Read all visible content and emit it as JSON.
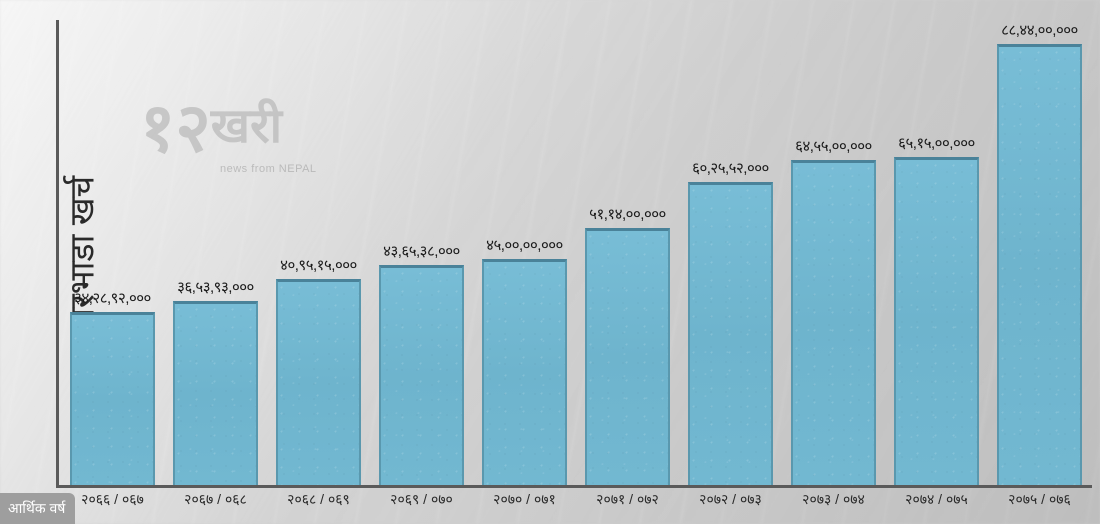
{
  "chart": {
    "type": "bar",
    "y_axis_label": "घरभाडा खर्च",
    "corner_badge": "आर्थिक वर्ष",
    "logo": {
      "num": "१२",
      "text": "खरी",
      "sub": "news from NEPAL"
    },
    "bar_color": "#72b8d1",
    "bar_border_color": "#4a8299",
    "axis_color": "#5a5a5a",
    "text_color": "#1a1a1a",
    "background_color": "#dcdcdc",
    "ylim_max": 884400000,
    "label_fontsize": 15,
    "axis_label_fontsize": 34,
    "bars": [
      {
        "category": "२०६६ / ०६७",
        "value_label": "३४,२८,९२,०००",
        "value": 342892000
      },
      {
        "category": "२०६७ / ०६८",
        "value_label": "३६,५३,९३,०००",
        "value": 365393000
      },
      {
        "category": "२०६८ / ०६९",
        "value_label": "४०,९५,१५,०००",
        "value": 409515000
      },
      {
        "category": "२०६९ / ०७०",
        "value_label": "४३,६५,३८,०००",
        "value": 436538000
      },
      {
        "category": "२०७० / ०७१",
        "value_label": "४५,००,००,०००",
        "value": 450000000
      },
      {
        "category": "२०७१ / ०७२",
        "value_label": "५१,१४,००,०००",
        "value": 511400000
      },
      {
        "category": "२०७२ / ०७३",
        "value_label": "६०,२५,५२,०००",
        "value": 602552000
      },
      {
        "category": "२०७३ / ०७४",
        "value_label": "६४,५५,००,०००",
        "value": 645500000
      },
      {
        "category": "२०७४ / ०७५",
        "value_label": "६५,१५,००,०००",
        "value": 651500000
      },
      {
        "category": "२०७५ / ०७६",
        "value_label": "८८,४४,००,०००",
        "value": 884400000
      }
    ]
  }
}
